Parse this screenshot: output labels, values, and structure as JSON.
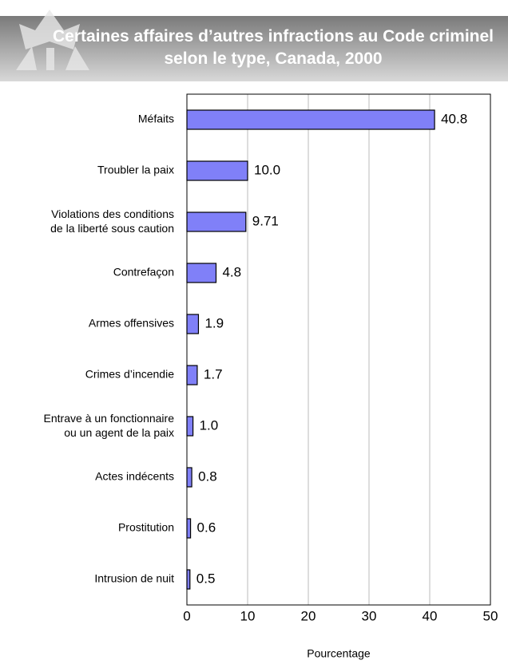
{
  "chart_data": {
    "type": "bar",
    "orientation": "horizontal",
    "title": "Certaines affaires d’autres infractions au Code criminel\nselon le type, Canada, 2000",
    "categories": [
      "Méfaits",
      "Troubler la paix",
      "Violations des conditions\nde la liberté sous caution",
      "Contrefaçon",
      "Armes offensives",
      "Crimes d’incendie",
      "Entrave à un fonctionnaire\nou un agent de la paix",
      "Actes indécents",
      "Prostitution",
      "Intrusion de nuit"
    ],
    "values": [
      40.8,
      10.0,
      9.71,
      4.8,
      1.9,
      1.7,
      1.0,
      0.8,
      0.6,
      0.5
    ],
    "value_labels": [
      "40.8",
      "10.0",
      "9.71",
      "4.8",
      "1.9",
      "1.7",
      "1.0",
      "0.8",
      "0.6",
      "0.5"
    ],
    "color": "#8080f8",
    "xlabel": "Pourcentage",
    "xlim": [
      0,
      50
    ],
    "xticks": [
      0,
      10,
      20,
      30,
      40,
      50
    ],
    "grid": true
  }
}
